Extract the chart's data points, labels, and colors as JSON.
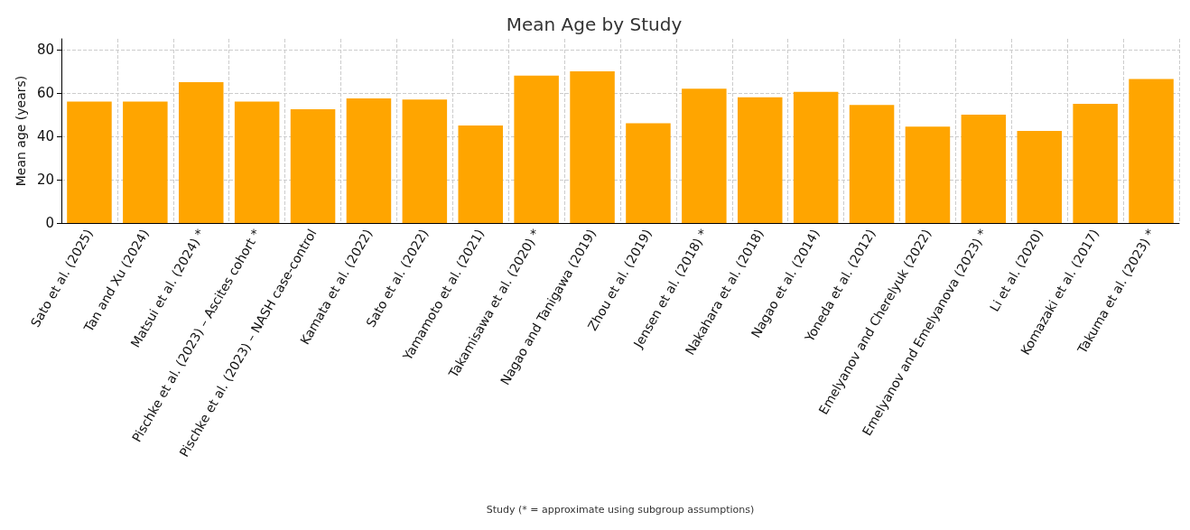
{
  "chart_data": {
    "type": "bar",
    "title": "Mean Age by Study",
    "xlabel": "Study (* = approximate using subgroup assumptions)",
    "ylabel": "Mean age (years)",
    "categories": [
      "Sato et al. (2025)",
      "Tan and Xu (2024)",
      "Matsui et al. (2024) *",
      "Pischke et al. (2023) – Ascites cohort *",
      "Pischke et al. (2023) – NASH case-control",
      "Kamata et al. (2022)",
      "Sato et al. (2022)",
      "Yamamoto et al. (2021)",
      "Takamisawa et al. (2020) *",
      "Nagao and Tanigawa (2019)",
      "Zhou et al. (2019)",
      "Jensen et al. (2018) *",
      "Nakahara et al. (2018)",
      "Nagao et al. (2014)",
      "Yoneda et al. (2012)",
      "Emelyanov and Cherelyuk (2022)",
      "Emelyanov and Emelyanova (2023) *",
      "Li et al. (2020)",
      "Komazaki et al. (2017)",
      "Takuma et al. (2023) *"
    ],
    "values": [
      56,
      56,
      65,
      56,
      52.5,
      57.5,
      57,
      45,
      68,
      70,
      46,
      62,
      58,
      60.5,
      54.5,
      44.5,
      50,
      42.5,
      55,
      66.5
    ],
    "color": "#ffa500",
    "ylim": [
      0,
      85
    ],
    "yticks": [
      0,
      20,
      40,
      60,
      80
    ],
    "grid": true
  }
}
